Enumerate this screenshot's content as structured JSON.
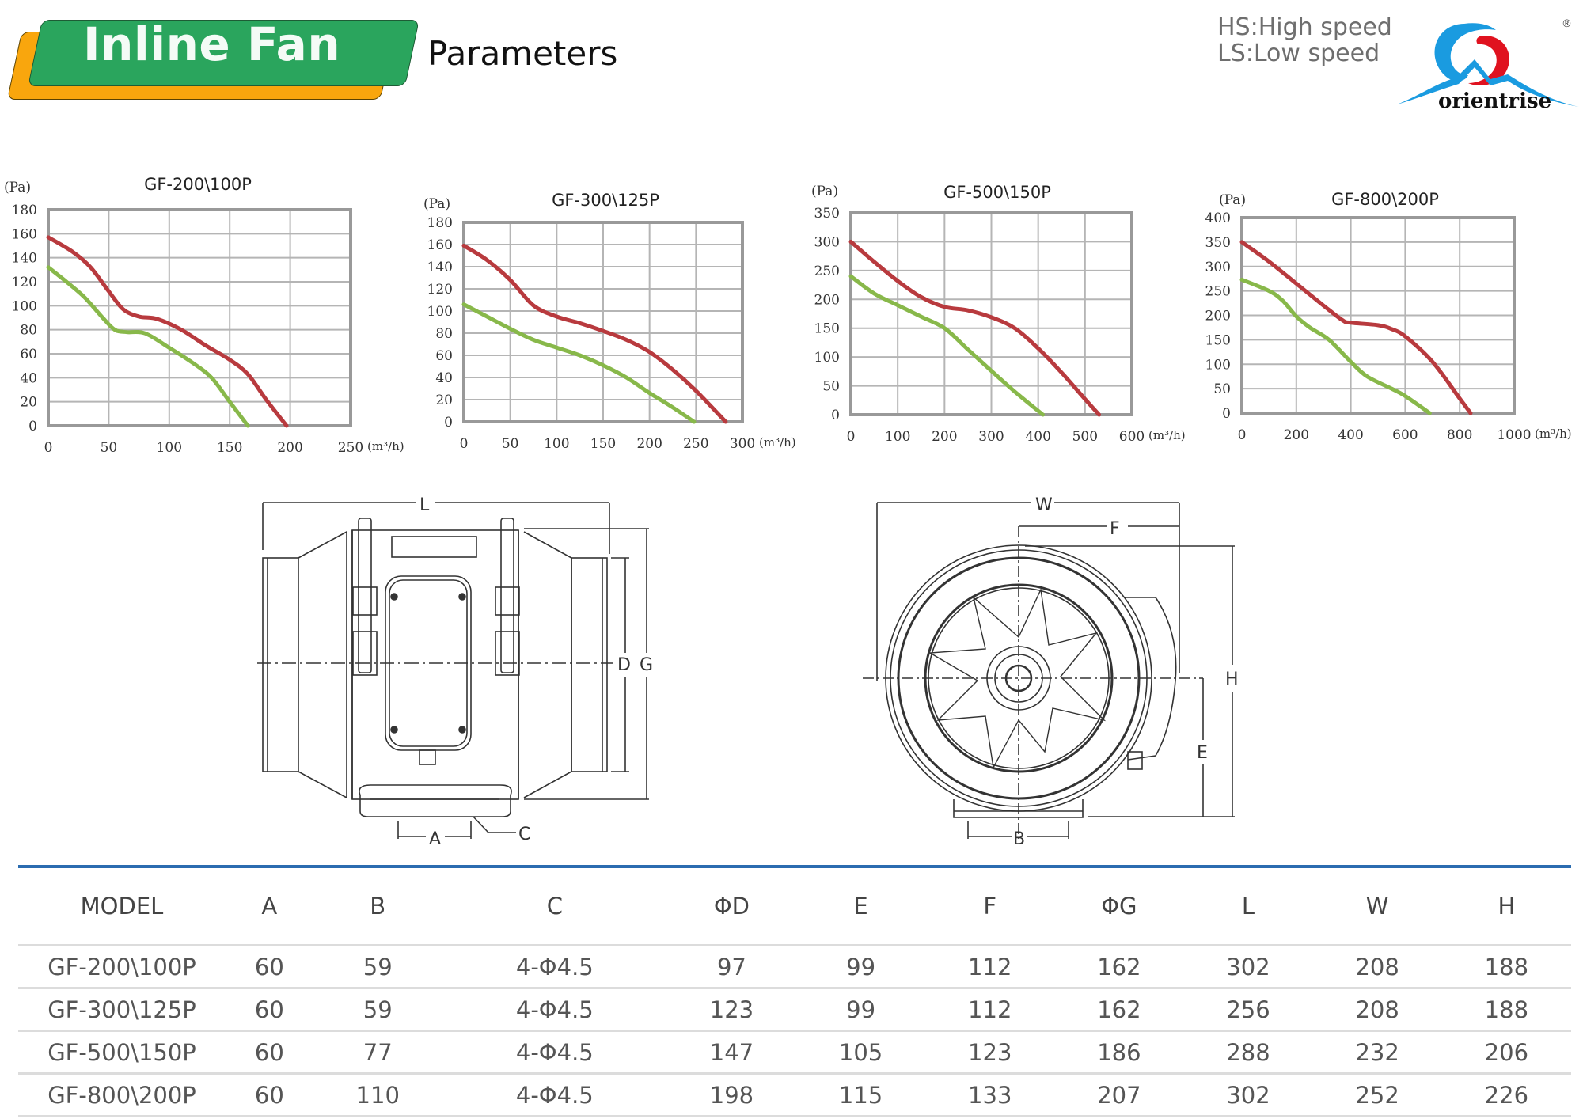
{
  "header": {
    "title": "Inline Fan",
    "subtitle": "Parameters",
    "legend": [
      "HS:High speed",
      "LS:Low speed"
    ],
    "brand": "orientrise",
    "registered_mark": "®",
    "colors": {
      "title_green": "#2aa55d",
      "title_orange": "#f9a60d",
      "hs_curve": "#b83a3e",
      "ls_curve": "#88b84a",
      "divider_blue": "#2b6cb0"
    }
  },
  "chart_data": [
    {
      "type": "line",
      "title": "GF-200\\100P",
      "xlabel": "(m³/h)",
      "ylabel": "(Pa)",
      "xlim": [
        0,
        250
      ],
      "ylim": [
        0,
        180
      ],
      "xticks": [
        0,
        50,
        100,
        150,
        200,
        250
      ],
      "yticks": [
        0,
        20,
        40,
        60,
        80,
        100,
        120,
        140,
        160,
        180
      ],
      "grid": true,
      "series": [
        {
          "name": "HS",
          "color": "#b83a3e",
          "x": [
            0,
            20,
            35,
            50,
            62,
            75,
            90,
            110,
            130,
            150,
            165,
            180,
            197
          ],
          "y": [
            157,
            145,
            132,
            112,
            97,
            91,
            89,
            80,
            67,
            55,
            43,
            22,
            0
          ]
        },
        {
          "name": "LS",
          "color": "#88b84a",
          "x": [
            0,
            15,
            30,
            45,
            55,
            65,
            80,
            100,
            120,
            135,
            150,
            165
          ],
          "y": [
            132,
            120,
            107,
            90,
            80,
            78,
            77,
            65,
            52,
            40,
            20,
            0
          ]
        }
      ]
    },
    {
      "type": "line",
      "title": "GF-300\\125P",
      "xlabel": "(m³/h)",
      "ylabel": "(Pa)",
      "xlim": [
        0,
        300
      ],
      "ylim": [
        0,
        180
      ],
      "xticks": [
        0,
        50,
        100,
        150,
        200,
        250,
        300
      ],
      "yticks": [
        0,
        20,
        40,
        60,
        80,
        100,
        120,
        140,
        160,
        180
      ],
      "grid": true,
      "series": [
        {
          "name": "HS",
          "color": "#b83a3e",
          "x": [
            0,
            25,
            50,
            75,
            100,
            125,
            150,
            175,
            200,
            225,
            250,
            282
          ],
          "y": [
            159,
            146,
            128,
            105,
            95,
            89,
            82,
            74,
            63,
            47,
            28,
            0
          ]
        },
        {
          "name": "LS",
          "color": "#88b84a",
          "x": [
            0,
            25,
            50,
            75,
            100,
            125,
            150,
            175,
            200,
            225,
            248
          ],
          "y": [
            106,
            95,
            84,
            74,
            67,
            60,
            51,
            40,
            26,
            13,
            0
          ]
        }
      ]
    },
    {
      "type": "line",
      "title": "GF-500\\150P",
      "xlabel": "(m³/h)",
      "ylabel": "(Pa)",
      "xlim": [
        0,
        600
      ],
      "ylim": [
        0,
        350
      ],
      "xticks": [
        0,
        100,
        200,
        300,
        400,
        500,
        600
      ],
      "yticks": [
        0,
        50,
        100,
        150,
        200,
        250,
        300,
        350
      ],
      "grid": true,
      "series": [
        {
          "name": "HS",
          "color": "#b83a3e",
          "x": [
            0,
            50,
            100,
            150,
            200,
            250,
            300,
            350,
            400,
            450,
            500,
            530
          ],
          "y": [
            300,
            265,
            232,
            204,
            187,
            181,
            169,
            150,
            115,
            73,
            27,
            0
          ]
        },
        {
          "name": "LS",
          "color": "#88b84a",
          "x": [
            0,
            50,
            100,
            150,
            200,
            250,
            300,
            350,
            410
          ],
          "y": [
            240,
            210,
            190,
            170,
            150,
            113,
            76,
            40,
            0
          ]
        }
      ]
    },
    {
      "type": "line",
      "title": "GF-800\\200P",
      "xlabel": "(m³/h)",
      "ylabel": "(Pa)",
      "xlim": [
        0,
        1000
      ],
      "ylim": [
        0,
        400
      ],
      "xticks": [
        0,
        200,
        400,
        600,
        800,
        1000
      ],
      "yticks": [
        0,
        50,
        100,
        150,
        200,
        250,
        300,
        350,
        400
      ],
      "grid": true,
      "series": [
        {
          "name": "HS",
          "color": "#b83a3e",
          "x": [
            0,
            100,
            200,
            300,
            370,
            400,
            500,
            550,
            600,
            700,
            800,
            840
          ],
          "y": [
            350,
            310,
            265,
            220,
            190,
            185,
            180,
            172,
            157,
            105,
            30,
            0
          ]
        },
        {
          "name": "LS",
          "color": "#88b84a",
          "x": [
            0,
            100,
            150,
            200,
            250,
            320,
            400,
            460,
            550,
            600,
            690
          ],
          "y": [
            273,
            250,
            230,
            198,
            175,
            150,
            105,
            75,
            50,
            35,
            0
          ]
        }
      ]
    }
  ],
  "drawings": {
    "side_view_labels": {
      "L": "L",
      "D": "D",
      "G": "G",
      "A": "A",
      "C": "C"
    },
    "front_view_labels": {
      "W": "W",
      "F": "F",
      "H": "H",
      "E": "E",
      "B": "B"
    }
  },
  "table": {
    "headers": [
      "MODEL",
      "A",
      "B",
      "C",
      "ΦD",
      "E",
      "F",
      "ΦG",
      "L",
      "W",
      "H"
    ],
    "rows": [
      [
        "GF-200\\100P",
        "60",
        "59",
        "4-Φ4.5",
        "97",
        "99",
        "112",
        "162",
        "302",
        "208",
        "188"
      ],
      [
        "GF-300\\125P",
        "60",
        "59",
        "4-Φ4.5",
        "123",
        "99",
        "112",
        "162",
        "256",
        "208",
        "188"
      ],
      [
        "GF-500\\150P",
        "60",
        "77",
        "4-Φ4.5",
        "147",
        "105",
        "123",
        "186",
        "288",
        "232",
        "206"
      ],
      [
        "GF-800\\200P",
        "60",
        "110",
        "4-Φ4.5",
        "198",
        "115",
        "133",
        "207",
        "302",
        "252",
        "226"
      ]
    ]
  }
}
